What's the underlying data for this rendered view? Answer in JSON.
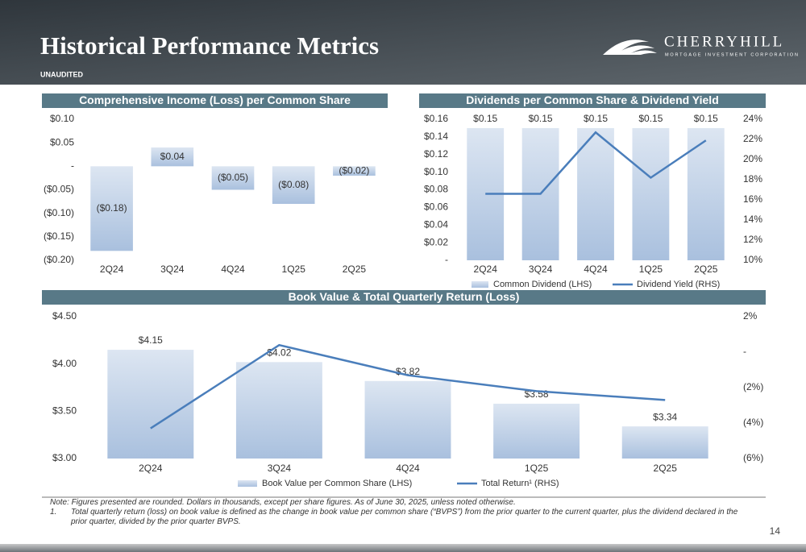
{
  "header": {
    "title": "Historical Performance Metrics",
    "subtitle": "UNAUDITED",
    "logo_name": "CHERRYHILL",
    "logo_tagline": "MORTGAGE INVESTMENT CORPORATION"
  },
  "chart_data": [
    {
      "type": "bar",
      "title": "Comprehensive Income (Loss) per Common Share",
      "categories": [
        "2Q24",
        "3Q24",
        "4Q24",
        "1Q25",
        "2Q25"
      ],
      "values": [
        -0.18,
        0.04,
        -0.05,
        -0.08,
        -0.02
      ],
      "value_labels": [
        "($0.18)",
        "$0.04",
        "($0.05)",
        "($0.08)",
        "($0.02)"
      ],
      "color": "#a9c0de",
      "ylim": [
        -0.2,
        0.1
      ],
      "yticks": [
        {
          "value": 0.1,
          "label": "$0.10"
        },
        {
          "value": 0.05,
          "label": "$0.05"
        },
        {
          "value": 0,
          "label": "-"
        },
        {
          "value": -0.05,
          "label": "($0.05)"
        },
        {
          "value": -0.1,
          "label": "($0.10)"
        },
        {
          "value": -0.15,
          "label": "($0.15)"
        },
        {
          "value": -0.2,
          "label": "($0.20)"
        }
      ],
      "grid": false
    },
    {
      "type": "bar-line",
      "title": "Dividends per Common Share & Dividend Yield",
      "categories": [
        "2Q24",
        "3Q24",
        "4Q24",
        "1Q25",
        "2Q25"
      ],
      "series": [
        {
          "name": "Common Dividend (LHS)",
          "type": "bar",
          "color": "#a9c0de",
          "values": [
            0.15,
            0.15,
            0.15,
            0.15,
            0.15
          ],
          "value_labels": [
            "$0.15",
            "$0.15",
            "$0.15",
            "$0.15",
            "$0.15"
          ]
        },
        {
          "name": "Dividend Yield (RHS)",
          "type": "line",
          "axis": "y2",
          "color": "#4a7ebb",
          "values": [
            16.6,
            16.6,
            22.7,
            18.2,
            21.9
          ]
        }
      ],
      "ylim": [
        0,
        0.16
      ],
      "yticks": [
        {
          "value": 0,
          "label": "-"
        },
        {
          "value": 0.02,
          "label": "$0.02"
        },
        {
          "value": 0.04,
          "label": "$0.04"
        },
        {
          "value": 0.06,
          "label": "$0.06"
        },
        {
          "value": 0.08,
          "label": "$0.08"
        },
        {
          "value": 0.1,
          "label": "$0.10"
        },
        {
          "value": 0.12,
          "label": "$0.12"
        },
        {
          "value": 0.14,
          "label": "$0.14"
        },
        {
          "value": 0.16,
          "label": "$0.16"
        }
      ],
      "y2lim": [
        10,
        24
      ],
      "y2ticks": [
        {
          "value": 10,
          "label": "10%"
        },
        {
          "value": 12,
          "label": "12%"
        },
        {
          "value": 14,
          "label": "14%"
        },
        {
          "value": 16,
          "label": "16%"
        },
        {
          "value": 18,
          "label": "18%"
        },
        {
          "value": 20,
          "label": "20%"
        },
        {
          "value": 22,
          "label": "22%"
        },
        {
          "value": 24,
          "label": "24%"
        }
      ],
      "grid": false,
      "legend": "bottom"
    },
    {
      "type": "bar-line",
      "title": "Book Value & Total Quarterly Return (Loss)",
      "categories": [
        "2Q24",
        "3Q24",
        "4Q24",
        "1Q25",
        "2Q25"
      ],
      "series": [
        {
          "name": "Book Value per Common Share (LHS)",
          "type": "bar",
          "color": "#a9c0de",
          "values": [
            4.15,
            4.02,
            3.82,
            3.58,
            3.34
          ],
          "value_labels": [
            "$4.15",
            "$4.02",
            "$3.82",
            "$3.58",
            "$3.34"
          ]
        },
        {
          "name": "Total Return¹ (RHS)",
          "type": "line",
          "axis": "y2",
          "color": "#4a7ebb",
          "values": [
            -4.3,
            0.4,
            -1.3,
            -2.2,
            -2.7
          ]
        }
      ],
      "ylim": [
        3,
        4.5
      ],
      "yticks": [
        {
          "value": 3,
          "label": "$3.00"
        },
        {
          "value": 3.5,
          "label": "$3.50"
        },
        {
          "value": 4,
          "label": "$4.00"
        },
        {
          "value": 4.5,
          "label": "$4.50"
        }
      ],
      "y2lim": [
        -6,
        2
      ],
      "y2ticks": [
        {
          "value": -6,
          "label": "(6%)"
        },
        {
          "value": -4,
          "label": "(4%)"
        },
        {
          "value": -2,
          "label": "(2%)"
        },
        {
          "value": 0,
          "label": "-"
        },
        {
          "value": 2,
          "label": "2%"
        }
      ],
      "grid": false,
      "legend": "bottom"
    }
  ],
  "notes": {
    "note": "Note: Figures presented are rounded. Dollars in thousands, except per share figures. As of June 30, 2025, unless noted otherwise.",
    "footnote_marker": "1.",
    "footnote": "Total quarterly return (loss) on book value is defined as the change in book value per common share (“BVPS”) from the prior quarter to the current quarter, plus the dividend declared in the prior quarter, divided by the prior quarter BVPS."
  },
  "page_number": "14"
}
